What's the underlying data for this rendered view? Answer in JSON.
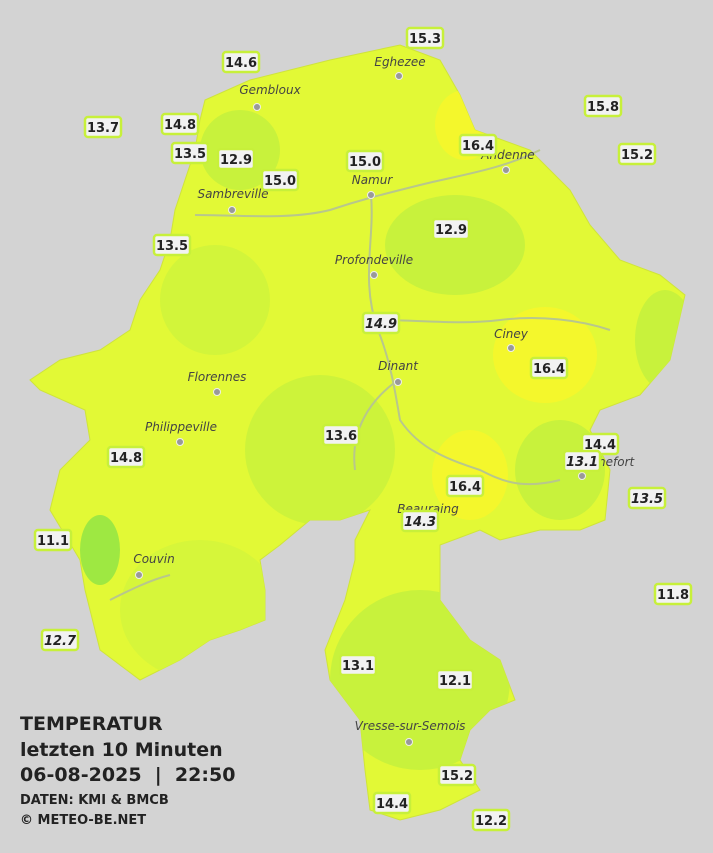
{
  "title": {
    "heading": "TEMPERATUR",
    "period": "letzten 10 Minuten",
    "datetime": "06-08-2025  |  22:50",
    "source": "DATEN: KMI & BMCB",
    "copyright": "© METEO-BE.NET"
  },
  "cities": [
    "Eghezee",
    "Gembloux",
    "Andenne",
    "Namur",
    "Sambreville",
    "Profondeville",
    "Ciney",
    "Dinant",
    "Florennes",
    "Philippeville",
    "Rochefort",
    "Beauraing",
    "Couvin",
    "Vresse-sur-Semois"
  ],
  "stations": [
    {
      "label": "15.3",
      "italic": false
    },
    {
      "label": "14.6",
      "italic": false
    },
    {
      "label": "15.8",
      "italic": false
    },
    {
      "label": "13.7",
      "italic": false
    },
    {
      "label": "14.8",
      "italic": false
    },
    {
      "label": "16.4",
      "italic": false
    },
    {
      "label": "15.2",
      "italic": false
    },
    {
      "label": "13.5",
      "italic": false
    },
    {
      "label": "12.9",
      "italic": false
    },
    {
      "label": "15.0",
      "italic": false
    },
    {
      "label": "15.0",
      "italic": false
    },
    {
      "label": "13.5",
      "italic": false
    },
    {
      "label": "12.9",
      "italic": false
    },
    {
      "label": "14.9",
      "italic": true
    },
    {
      "label": "16.4",
      "italic": false
    },
    {
      "label": "14.4",
      "italic": false
    },
    {
      "label": "13.1",
      "italic": true
    },
    {
      "label": "13.6",
      "italic": false
    },
    {
      "label": "14.8",
      "italic": false
    },
    {
      "label": "16.4",
      "italic": false
    },
    {
      "label": "13.5",
      "italic": true
    },
    {
      "label": "14.3",
      "italic": true
    },
    {
      "label": "11.1",
      "italic": false
    },
    {
      "label": "11.8",
      "italic": false
    },
    {
      "label": "12.7",
      "italic": true
    },
    {
      "label": "13.1",
      "italic": false
    },
    {
      "label": "12.1",
      "italic": false
    },
    {
      "label": "15.2",
      "italic": false
    },
    {
      "label": "14.4",
      "italic": false
    },
    {
      "label": "12.2",
      "italic": false
    }
  ]
}
